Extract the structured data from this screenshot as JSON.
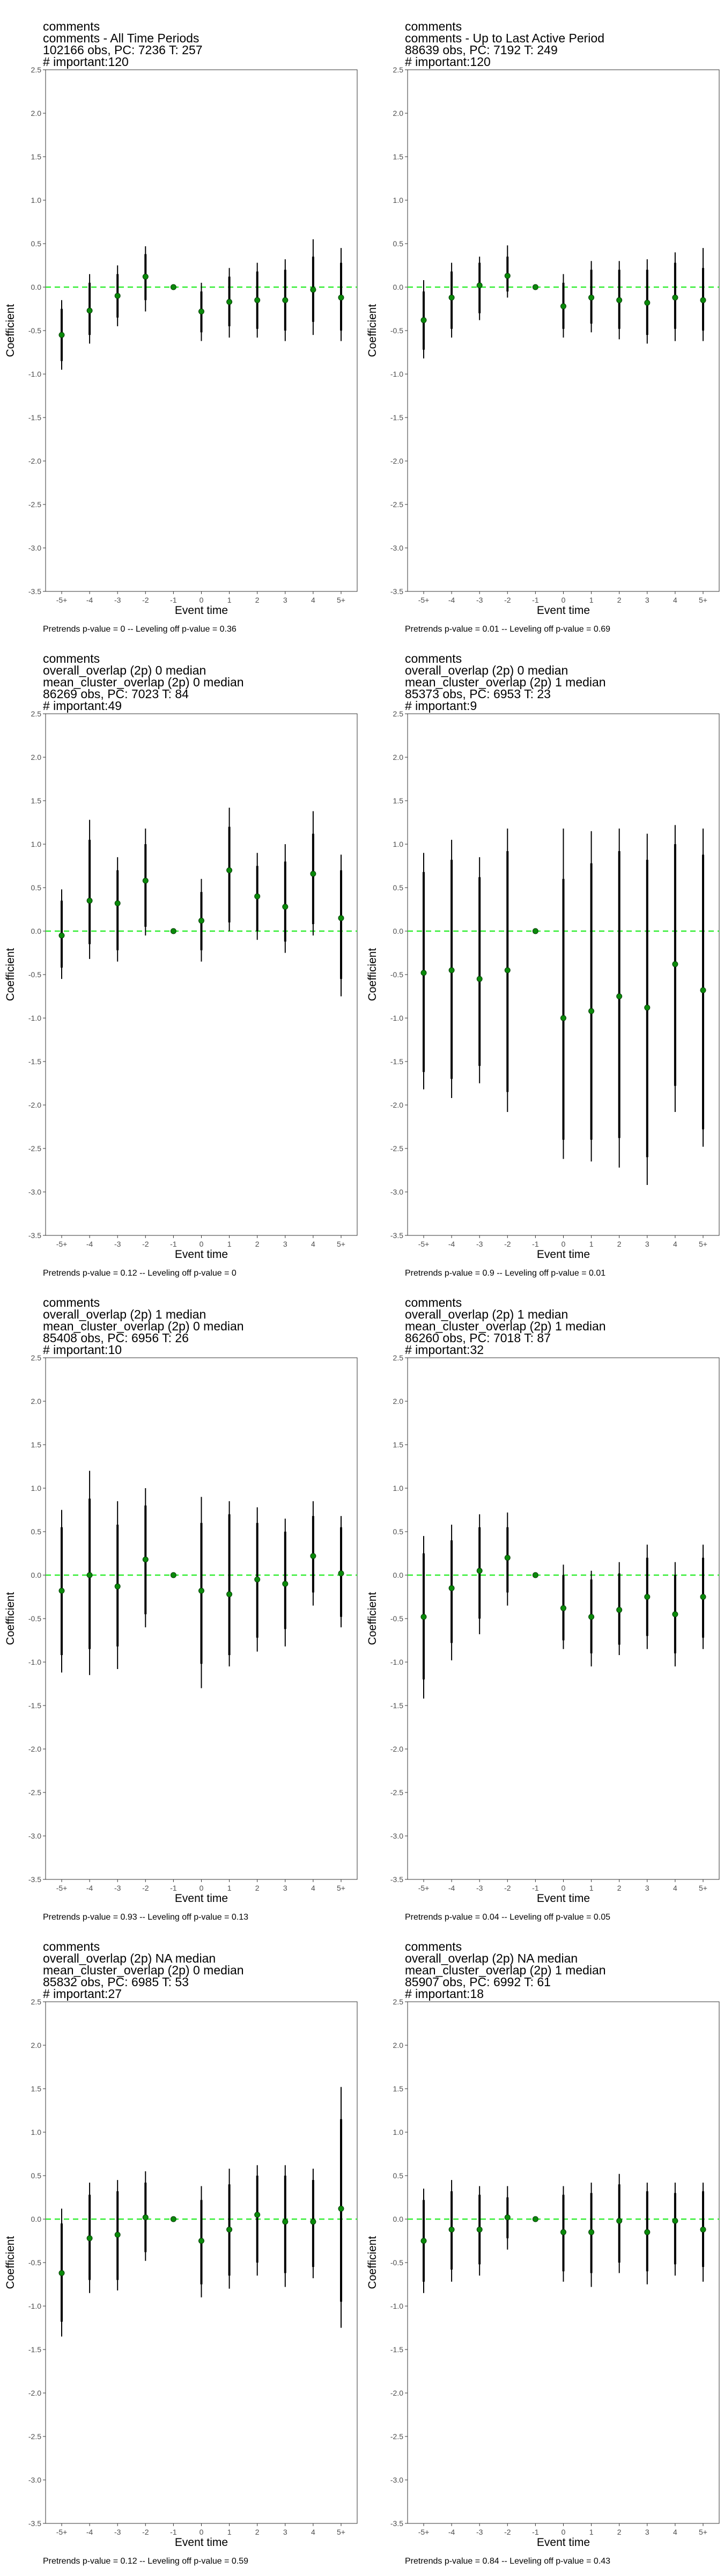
{
  "chart_data": [
    {
      "type": "scatter",
      "title_lines": [
        "comments",
        "comments - All Time Periods",
        "102166 obs, PC: 7236 T: 257",
        "# important:120"
      ],
      "xlabel": "Event time",
      "ylabel": "Coefficient",
      "categories": [
        "-5+",
        "-4",
        "-3",
        "-2",
        "-1",
        "0",
        "1",
        "2",
        "3",
        "4",
        "5+"
      ],
      "y_ticks": [
        "2.5",
        "2.0",
        "1.5",
        "1.0",
        "0.5",
        "0.0",
        "-0.5",
        "-1.0",
        "-1.5",
        "-2.0",
        "-2.5",
        "-3.0",
        "-3.5"
      ],
      "ylim": [
        -3.5,
        2.5
      ],
      "estimates": [
        -0.55,
        -0.27,
        -0.1,
        0.12,
        0.0,
        -0.28,
        -0.17,
        -0.15,
        -0.15,
        -0.03,
        -0.12
      ],
      "ci95_low": [
        -0.95,
        -0.65,
        -0.45,
        -0.28,
        0.0,
        -0.62,
        -0.58,
        -0.58,
        -0.62,
        -0.55,
        -0.62
      ],
      "ci95_high": [
        -0.15,
        0.15,
        0.25,
        0.47,
        0.0,
        0.05,
        0.22,
        0.28,
        0.32,
        0.55,
        0.45
      ],
      "ci90_low": [
        -0.85,
        -0.55,
        -0.35,
        -0.15,
        0.0,
        -0.52,
        -0.45,
        -0.48,
        -0.5,
        -0.4,
        -0.5
      ],
      "ci90_high": [
        -0.25,
        0.05,
        0.15,
        0.38,
        0.0,
        -0.05,
        0.12,
        0.18,
        0.2,
        0.35,
        0.28
      ],
      "footer": "Pretrends p-value = 0 -- Leveling off p-value = 0.36",
      "reference_line": 0,
      "grid": false
    },
    {
      "type": "scatter",
      "title_lines": [
        "comments",
        "comments - Up to Last Active Period",
        "88639 obs, PC: 7192 T: 249",
        "# important:120"
      ],
      "xlabel": "Event time",
      "ylabel": "Coefficient",
      "categories": [
        "-5+",
        "-4",
        "-3",
        "-2",
        "-1",
        "0",
        "1",
        "2",
        "3",
        "4",
        "5+"
      ],
      "y_ticks": [
        "2.5",
        "2.0",
        "1.5",
        "1.0",
        "0.5",
        "0.0",
        "-0.5",
        "-1.0",
        "-1.5",
        "-2.0",
        "-2.5",
        "-3.0",
        "-3.5"
      ],
      "ylim": [
        -3.5,
        2.5
      ],
      "estimates": [
        -0.38,
        -0.12,
        0.02,
        0.13,
        0.0,
        -0.22,
        -0.12,
        -0.15,
        -0.18,
        -0.12,
        -0.15
      ],
      "ci95_low": [
        -0.82,
        -0.58,
        -0.38,
        -0.12,
        0.0,
        -0.58,
        -0.52,
        -0.6,
        -0.65,
        -0.62,
        -0.62
      ],
      "ci95_high": [
        0.08,
        0.28,
        0.35,
        0.48,
        0.0,
        0.15,
        0.3,
        0.3,
        0.32,
        0.4,
        0.45
      ],
      "ci90_low": [
        -0.72,
        -0.48,
        -0.3,
        -0.05,
        0.0,
        -0.48,
        -0.42,
        -0.48,
        -0.55,
        -0.48,
        -0.5
      ],
      "ci90_high": [
        -0.05,
        0.18,
        0.28,
        0.35,
        0.0,
        0.05,
        0.2,
        0.2,
        0.2,
        0.28,
        0.22
      ],
      "footer": "Pretrends p-value = 0.01 -- Leveling off p-value = 0.69",
      "reference_line": 0,
      "grid": false
    },
    {
      "type": "scatter",
      "title_lines": [
        "comments",
        "overall_overlap (2p) 0 median",
        "mean_cluster_overlap (2p) 0 median",
        "86269 obs, PC: 7023 T: 84",
        "# important:49"
      ],
      "xlabel": "Event time",
      "ylabel": "Coefficient",
      "categories": [
        "-5+",
        "-4",
        "-3",
        "-2",
        "-1",
        "0",
        "1",
        "2",
        "3",
        "4",
        "5+"
      ],
      "y_ticks": [
        "2.5",
        "2.0",
        "1.5",
        "1.0",
        "0.5",
        "0.0",
        "-0.5",
        "-1.0",
        "-1.5",
        "-2.0",
        "-2.5",
        "-3.0",
        "-3.5"
      ],
      "ylim": [
        -3.5,
        2.5
      ],
      "estimates": [
        -0.05,
        0.35,
        0.32,
        0.58,
        0.0,
        0.12,
        0.7,
        0.4,
        0.28,
        0.66,
        0.15
      ],
      "ci95_low": [
        -0.55,
        -0.32,
        -0.35,
        -0.05,
        0.0,
        -0.35,
        0.0,
        -0.1,
        -0.25,
        -0.05,
        -0.75
      ],
      "ci95_high": [
        0.48,
        1.28,
        0.85,
        1.18,
        0.0,
        0.6,
        1.42,
        0.9,
        1.0,
        1.38,
        0.88
      ],
      "ci90_low": [
        -0.42,
        -0.15,
        -0.22,
        0.05,
        0.0,
        -0.22,
        0.1,
        0.0,
        -0.12,
        0.08,
        -0.55
      ],
      "ci90_high": [
        0.35,
        1.05,
        0.7,
        1.0,
        0.0,
        0.45,
        1.2,
        0.75,
        0.8,
        1.12,
        0.7
      ],
      "footer": "Pretrends p-value = 0.12 -- Leveling off p-value = 0",
      "reference_line": 0,
      "grid": false
    },
    {
      "type": "scatter",
      "title_lines": [
        "comments",
        "overall_overlap (2p) 0 median",
        "mean_cluster_overlap (2p) 1 median",
        "85373 obs, PC: 6953 T: 23",
        "# important:9"
      ],
      "xlabel": "Event time",
      "ylabel": "Coefficient",
      "categories": [
        "-5+",
        "-4",
        "-3",
        "-2",
        "-1",
        "0",
        "1",
        "2",
        "3",
        "4",
        "5+"
      ],
      "y_ticks": [
        "2.5",
        "2.0",
        "1.5",
        "1.0",
        "0.5",
        "0.0",
        "-0.5",
        "-1.0",
        "-1.5",
        "-2.0",
        "-2.5",
        "-3.0",
        "-3.5"
      ],
      "ylim": [
        -3.5,
        2.5
      ],
      "estimates": [
        -0.48,
        -0.45,
        -0.55,
        -0.45,
        0.0,
        -1.0,
        -0.92,
        -0.75,
        -0.88,
        -0.38,
        -0.68
      ],
      "ci95_low": [
        -1.82,
        -1.92,
        -1.75,
        -2.08,
        0.0,
        -2.62,
        -2.65,
        -2.72,
        -2.92,
        -2.08,
        -2.48
      ],
      "ci95_high": [
        0.9,
        1.05,
        0.85,
        1.18,
        0.0,
        1.18,
        1.15,
        1.18,
        1.12,
        1.22,
        1.18
      ],
      "ci90_low": [
        -1.62,
        -1.7,
        -1.55,
        -1.85,
        0.0,
        -2.4,
        -2.4,
        -2.38,
        -2.6,
        -1.78,
        -2.28
      ],
      "ci90_high": [
        0.68,
        0.82,
        0.62,
        0.92,
        0.0,
        0.6,
        0.78,
        0.92,
        0.82,
        1.0,
        0.88
      ],
      "footer": "Pretrends p-value = 0.9 -- Leveling off p-value = 0.01",
      "reference_line": 0,
      "grid": false
    },
    {
      "type": "scatter",
      "title_lines": [
        "comments",
        "overall_overlap (2p) 1 median",
        "mean_cluster_overlap (2p) 0 median",
        "85408 obs, PC: 6956 T: 26",
        "# important:10"
      ],
      "xlabel": "Event time",
      "ylabel": "Coefficient",
      "categories": [
        "-5+",
        "-4",
        "-3",
        "-2",
        "-1",
        "0",
        "1",
        "2",
        "3",
        "4",
        "5+"
      ],
      "y_ticks": [
        "2.5",
        "2.0",
        "1.5",
        "1.0",
        "0.5",
        "0.0",
        "-0.5",
        "-1.0",
        "-1.5",
        "-2.0",
        "-2.5",
        "-3.0",
        "-3.5"
      ],
      "ylim": [
        -3.5,
        2.5
      ],
      "estimates": [
        -0.18,
        0.0,
        -0.13,
        0.18,
        0.0,
        -0.18,
        -0.22,
        -0.05,
        -0.1,
        0.22,
        0.02
      ],
      "ci95_low": [
        -1.12,
        -1.15,
        -1.08,
        -0.6,
        0.0,
        -1.3,
        -1.05,
        -0.88,
        -0.82,
        -0.35,
        -0.6
      ],
      "ci95_high": [
        0.75,
        1.2,
        0.85,
        1.0,
        0.0,
        0.9,
        0.85,
        0.78,
        0.65,
        0.85,
        0.68
      ],
      "ci90_low": [
        -0.92,
        -0.85,
        -0.82,
        -0.45,
        0.0,
        -1.02,
        -0.92,
        -0.72,
        -0.62,
        -0.2,
        -0.48
      ],
      "ci90_high": [
        0.55,
        0.88,
        0.58,
        0.8,
        0.0,
        0.6,
        0.7,
        0.6,
        0.5,
        0.68,
        0.55
      ],
      "footer": "Pretrends p-value = 0.93 -- Leveling off p-value = 0.13",
      "reference_line": 0,
      "grid": false
    },
    {
      "type": "scatter",
      "title_lines": [
        "comments",
        "overall_overlap (2p) 1 median",
        "mean_cluster_overlap (2p) 1 median",
        "86260 obs, PC: 7018 T: 87",
        "# important:32"
      ],
      "xlabel": "Event time",
      "ylabel": "Coefficient",
      "categories": [
        "-5+",
        "-4",
        "-3",
        "-2",
        "-1",
        "0",
        "1",
        "2",
        "3",
        "4",
        "5+"
      ],
      "y_ticks": [
        "2.5",
        "2.0",
        "1.5",
        "1.0",
        "0.5",
        "0.0",
        "-0.5",
        "-1.0",
        "-1.5",
        "-2.0",
        "-2.5",
        "-3.0",
        "-3.5"
      ],
      "ylim": [
        -3.5,
        2.5
      ],
      "estimates": [
        -0.48,
        -0.15,
        0.05,
        0.2,
        0.0,
        -0.38,
        -0.48,
        -0.4,
        -0.25,
        -0.45,
        -0.25
      ],
      "ci95_low": [
        -1.42,
        -0.98,
        -0.68,
        -0.35,
        0.0,
        -0.85,
        -1.05,
        -0.92,
        -0.85,
        -1.05,
        -0.85
      ],
      "ci95_high": [
        0.45,
        0.58,
        0.7,
        0.72,
        0.0,
        0.12,
        0.05,
        0.15,
        0.35,
        0.15,
        0.35
      ],
      "ci90_low": [
        -1.2,
        -0.78,
        -0.5,
        -0.2,
        0.0,
        -0.75,
        -0.9,
        -0.8,
        -0.7,
        -0.9,
        -0.72
      ],
      "ci90_high": [
        0.25,
        0.4,
        0.55,
        0.55,
        0.0,
        0.0,
        -0.05,
        0.02,
        0.2,
        0.0,
        0.2
      ],
      "footer": "Pretrends p-value = 0.04 -- Leveling off p-value = 0.05",
      "reference_line": 0,
      "grid": false
    },
    {
      "type": "scatter",
      "title_lines": [
        "comments",
        "overall_overlap (2p) NA median",
        "mean_cluster_overlap (2p) 0 median",
        "85832 obs, PC: 6985 T: 53",
        "# important:27"
      ],
      "xlabel": "Event time",
      "ylabel": "Coefficient",
      "categories": [
        "-5+",
        "-4",
        "-3",
        "-2",
        "-1",
        "0",
        "1",
        "2",
        "3",
        "4",
        "5+"
      ],
      "y_ticks": [
        "2.5",
        "2.0",
        "1.5",
        "1.0",
        "0.5",
        "0.0",
        "-0.5",
        "-1.0",
        "-1.5",
        "-2.0",
        "-2.5",
        "-3.0",
        "-3.5"
      ],
      "ylim": [
        -3.5,
        2.5
      ],
      "estimates": [
        -0.62,
        -0.22,
        -0.18,
        0.02,
        0.0,
        -0.25,
        -0.12,
        0.05,
        -0.03,
        -0.03,
        0.12
      ],
      "ci95_low": [
        -1.35,
        -0.85,
        -0.82,
        -0.48,
        0.0,
        -0.9,
        -0.8,
        -0.65,
        -0.78,
        -0.68,
        -1.25
      ],
      "ci95_high": [
        0.12,
        0.42,
        0.45,
        0.55,
        0.0,
        0.38,
        0.58,
        0.62,
        0.62,
        0.58,
        1.52
      ],
      "ci90_low": [
        -1.18,
        -0.7,
        -0.7,
        -0.38,
        0.0,
        -0.75,
        -0.65,
        -0.5,
        -0.62,
        -0.55,
        -0.95
      ],
      "ci90_high": [
        -0.05,
        0.28,
        0.32,
        0.42,
        0.0,
        0.22,
        0.4,
        0.5,
        0.5,
        0.45,
        1.15
      ],
      "footer": "Pretrends p-value = 0.12 -- Leveling off p-value = 0.59",
      "reference_line": 0,
      "grid": false
    },
    {
      "type": "scatter",
      "title_lines": [
        "comments",
        "overall_overlap (2p) NA median",
        "mean_cluster_overlap (2p) 1 median",
        "85907 obs, PC: 6992 T: 61",
        "# important:18"
      ],
      "xlabel": "Event time",
      "ylabel": "Coefficient",
      "categories": [
        "-5+",
        "-4",
        "-3",
        "-2",
        "-1",
        "0",
        "1",
        "2",
        "3",
        "4",
        "5+"
      ],
      "y_ticks": [
        "2.5",
        "2.0",
        "1.5",
        "1.0",
        "0.5",
        "0.0",
        "-0.5",
        "-1.0",
        "-1.5",
        "-2.0",
        "-2.5",
        "-3.0",
        "-3.5"
      ],
      "ylim": [
        -3.5,
        2.5
      ],
      "estimates": [
        -0.25,
        -0.12,
        -0.12,
        0.02,
        0.0,
        -0.15,
        -0.15,
        -0.02,
        -0.15,
        -0.02,
        -0.12
      ],
      "ci95_low": [
        -0.85,
        -0.72,
        -0.65,
        -0.35,
        0.0,
        -0.72,
        -0.78,
        -0.62,
        -0.75,
        -0.65,
        -0.72
      ],
      "ci95_high": [
        0.35,
        0.45,
        0.38,
        0.38,
        0.0,
        0.38,
        0.42,
        0.52,
        0.42,
        0.42,
        0.42
      ],
      "ci90_low": [
        -0.72,
        -0.58,
        -0.52,
        -0.22,
        0.0,
        -0.6,
        -0.62,
        -0.5,
        -0.6,
        -0.52,
        -0.55
      ],
      "ci90_high": [
        0.22,
        0.32,
        0.28,
        0.25,
        0.0,
        0.28,
        0.3,
        0.4,
        0.32,
        0.3,
        0.32
      ],
      "footer": "Pretrends p-value = 0.84 -- Leveling off p-value = 0.43",
      "reference_line": 0,
      "grid": false
    }
  ]
}
